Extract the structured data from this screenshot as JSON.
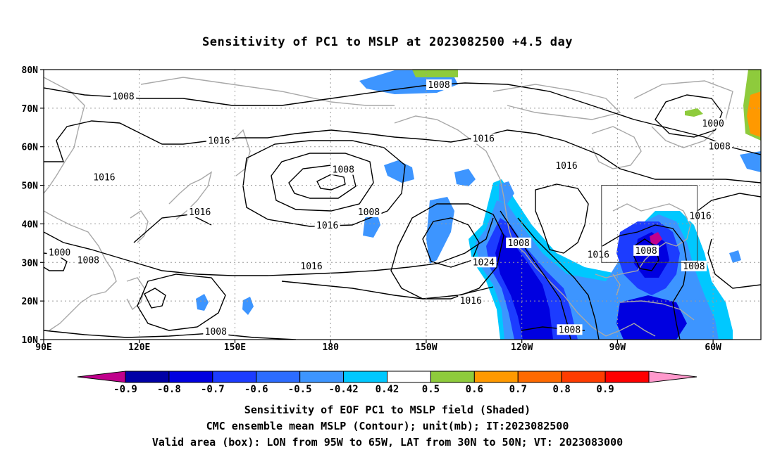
{
  "title": "Sensitivity of PC1 to MSLP at 2023082500 +4.5 day",
  "map": {
    "lat_labels": [
      "80N",
      "70N",
      "60N",
      "50N",
      "40N",
      "30N",
      "20N",
      "10N"
    ],
    "lat_values": [
      80,
      70,
      60,
      50,
      40,
      30,
      20,
      10
    ],
    "lon_labels": [
      "90E",
      "120E",
      "150E",
      "180",
      "150W",
      "120W",
      "90W",
      "60W"
    ],
    "lon_values": [
      90,
      120,
      150,
      180,
      210,
      240,
      270,
      300
    ],
    "lon_range": [
      90,
      315
    ],
    "lat_range": [
      10,
      80
    ],
    "valid_box": {
      "lon": [
        265,
        295
      ],
      "lat": [
        30,
        50
      ]
    },
    "contour_labels": [
      {
        "text": "1008",
        "lon": 115,
        "lat": 73
      },
      {
        "text": "1008",
        "lon": 214,
        "lat": 76
      },
      {
        "text": "1016",
        "lon": 145,
        "lat": 61.5
      },
      {
        "text": "1016",
        "lon": 109,
        "lat": 52
      },
      {
        "text": "1008",
        "lon": 184,
        "lat": 54
      },
      {
        "text": "1016",
        "lon": 228,
        "lat": 62
      },
      {
        "text": "1016",
        "lon": 254,
        "lat": 55
      },
      {
        "text": "1000",
        "lon": 300,
        "lat": 66
      },
      {
        "text": "1008",
        "lon": 302,
        "lat": 60
      },
      {
        "text": "1016",
        "lon": 139,
        "lat": 43
      },
      {
        "text": "1008",
        "lon": 192,
        "lat": 43
      },
      {
        "text": "1016",
        "lon": 179,
        "lat": 39.5
      },
      {
        "text": "1000",
        "lon": 95,
        "lat": 32.5
      },
      {
        "text": "1008",
        "lon": 104,
        "lat": 30.5
      },
      {
        "text": "1016",
        "lon": 174,
        "lat": 29
      },
      {
        "text": "1024",
        "lon": 228,
        "lat": 30
      },
      {
        "text": "1008",
        "lon": 239,
        "lat": 35
      },
      {
        "text": "1016",
        "lon": 264,
        "lat": 32
      },
      {
        "text": "1008",
        "lon": 279,
        "lat": 33
      },
      {
        "text": "1016",
        "lon": 296,
        "lat": 42
      },
      {
        "text": "1008",
        "lon": 294,
        "lat": 29
      },
      {
        "text": "1016",
        "lon": 224,
        "lat": 20
      },
      {
        "text": "1008",
        "lon": 144,
        "lat": 12
      },
      {
        "text": "1008",
        "lon": 255,
        "lat": 12.5
      }
    ]
  },
  "colorbar": {
    "labels": [
      "-0.9",
      "-0.8",
      "-0.7",
      "-0.6",
      "-0.5",
      "-0.42",
      "0.42",
      "0.5",
      "0.6",
      "0.7",
      "0.8",
      "0.9"
    ],
    "colors": [
      "#0000a6",
      "#0000e0",
      "#1c3cff",
      "#2c6cff",
      "#3d95ff",
      "#00c8ff",
      "#ffffff",
      "#8ecb3c",
      "#ff9900",
      "#ff6a00",
      "#ff3c00",
      "#ff0000"
    ],
    "left_tip_color": "#c0008c",
    "right_tip_color": "#ff99cc"
  },
  "captions": {
    "line1": "Sensitivity of EOF PC1 to MSLP field (Shaded)",
    "line2": "CMC ensemble mean MSLP (Contour); unit(mb); IT:2023082500",
    "line3": "Valid area (box): LON from 95W to 65W, LAT from 30N to 50N; VT: 2023083000"
  }
}
